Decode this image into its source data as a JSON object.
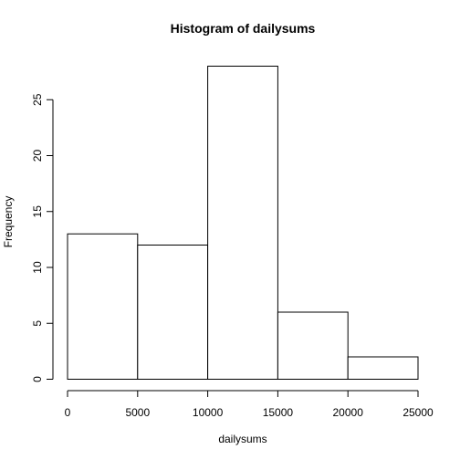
{
  "chart_data": {
    "type": "bar",
    "title": "Histogram of dailysums",
    "xlabel": "dailysums",
    "ylabel": "Frequency",
    "bins": [
      {
        "start": 0,
        "end": 5000,
        "count": 13
      },
      {
        "start": 5000,
        "end": 10000,
        "count": 12
      },
      {
        "start": 10000,
        "end": 15000,
        "count": 28
      },
      {
        "start": 15000,
        "end": 20000,
        "count": 6
      },
      {
        "start": 20000,
        "end": 25000,
        "count": 2
      }
    ],
    "xlim": [
      0,
      25000
    ],
    "ylim": [
      0,
      28
    ],
    "x_ticks": [
      0,
      5000,
      10000,
      15000,
      20000,
      25000
    ],
    "x_tick_labels": [
      "0",
      "5000",
      "10000",
      "15000",
      "20000",
      "25000"
    ],
    "y_ticks": [
      0,
      5,
      10,
      15,
      20,
      25
    ],
    "y_tick_labels": [
      "0",
      "5",
      "10",
      "15",
      "20",
      "25"
    ],
    "grid": false,
    "legend": "none",
    "colors": {
      "bar_fill": "#ffffff",
      "bar_stroke": "#000000"
    }
  }
}
